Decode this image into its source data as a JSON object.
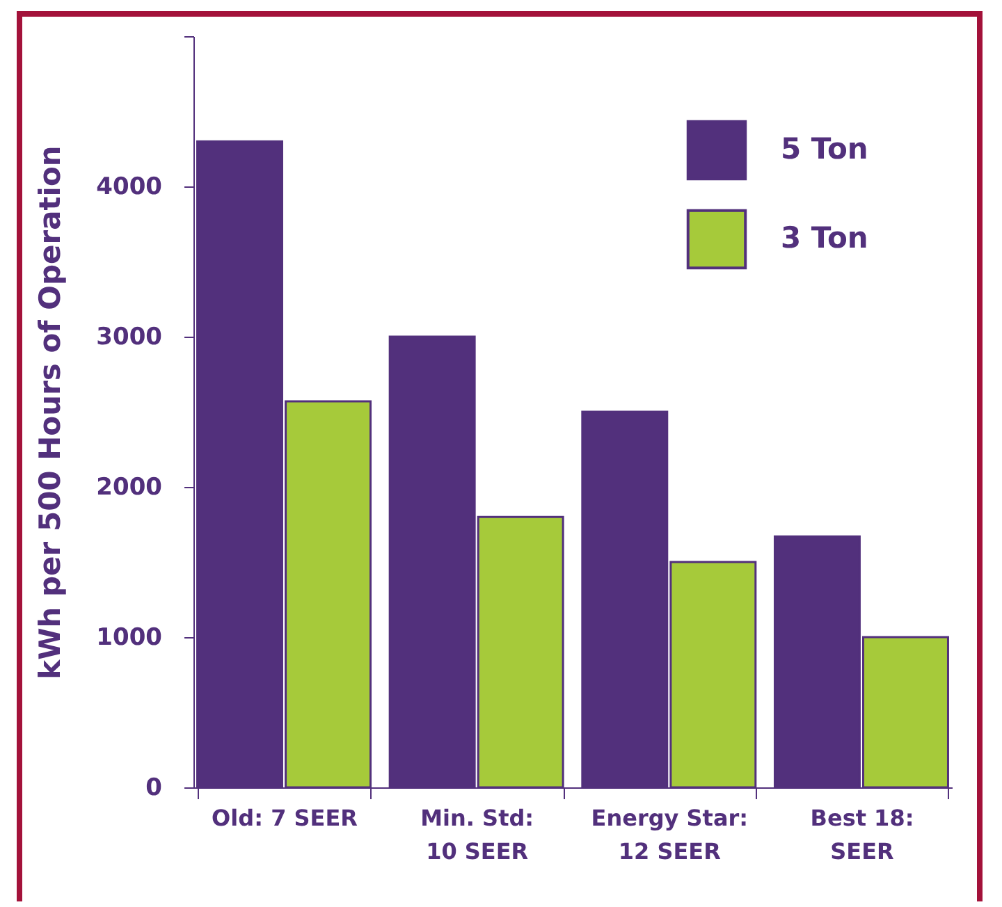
{
  "chart_data": {
    "type": "bar",
    "ylabel": "kWh per 500 Hours of Operation",
    "categories": [
      "Old: 7 SEER",
      "Min. Std:\n10 SEER",
      "Energy Star:\n12 SEER",
      "Best 18:\nSEER"
    ],
    "series": [
      {
        "name": "5 Ton",
        "color": "#52307c",
        "values": [
          4300,
          3000,
          2500,
          1670
        ]
      },
      {
        "name": "3 Ton",
        "color": "#a6ca3a",
        "values": [
          2570,
          1800,
          1500,
          1000
        ]
      }
    ],
    "ylim": [
      0,
      5000
    ],
    "yticks": [
      0,
      1000,
      2000,
      3000,
      4000,
      {
        "value": 5000,
        "label": null
      }
    ],
    "legend": "top right",
    "grid": false
  }
}
